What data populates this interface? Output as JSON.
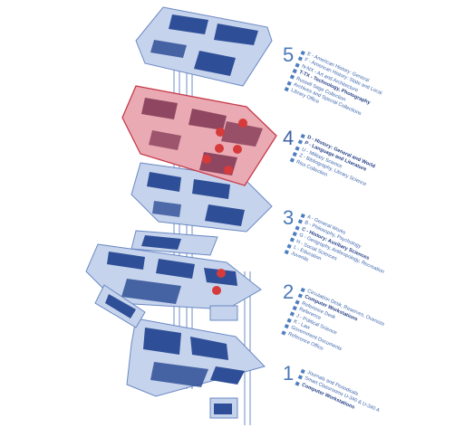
{
  "colors": {
    "floor_fill": "#c6d3ec",
    "floor_stroke": "#6a89c4",
    "room_fill": "#2e4f97",
    "highlight_fill": "#e9aab3",
    "highlight_stroke": "#c73a4b",
    "marker": "#d63a3a",
    "legend_text": "#3c66ac",
    "legend_bold": "#243f86"
  },
  "floors": [
    {
      "number": "5",
      "items": [
        {
          "text": "E - American History: General",
          "bold": false
        },
        {
          "text": "F - American History: State and Local",
          "bold": false
        },
        {
          "text": "N-NX - Art and Architecture",
          "bold": false
        },
        {
          "text": "T-TX - Technology, Photography",
          "bold": true
        },
        {
          "text": "Russell Sage Collection",
          "bold": false
        },
        {
          "text": "Archives and Special Collections",
          "bold": false
        },
        {
          "text": "Library Office",
          "bold": false
        }
      ]
    },
    {
      "number": "4",
      "active": true,
      "items": [
        {
          "text": "D - History: General and World",
          "bold": true
        },
        {
          "text": "P - Language and Literature",
          "bold": true
        },
        {
          "text": "U - Military Science",
          "bold": false
        },
        {
          "text": "Z - Bibliography, Library Science",
          "bold": false
        },
        {
          "text": "Riss Collection",
          "bold": false
        }
      ]
    },
    {
      "number": "3",
      "items": [
        {
          "text": "A - General Works",
          "bold": false
        },
        {
          "text": "B - Philosophy, Psychology",
          "bold": false
        },
        {
          "text": "C - History: Auxiliary Sciences",
          "bold": true
        },
        {
          "text": "G - Geography, Anthropology, Recreation",
          "bold": false
        },
        {
          "text": "H - Social Sciences",
          "bold": false
        },
        {
          "text": "L - Education",
          "bold": false
        },
        {
          "text": "Juvenile",
          "bold": false
        }
      ]
    },
    {
      "number": "2",
      "items": [
        {
          "text": "Circulation Desk, Reserves, Oversize",
          "bold": false
        },
        {
          "text": "Computer Workstations",
          "bold": true
        },
        {
          "text": "Reference Desk",
          "bold": false
        },
        {
          "text": "Reference",
          "bold": false
        },
        {
          "text": "J - Political Science",
          "bold": false
        },
        {
          "text": "K - Law",
          "bold": false
        },
        {
          "text": "Government Documents",
          "bold": false
        },
        {
          "text": "Reference Office",
          "bold": false
        }
      ]
    },
    {
      "number": "1",
      "items": [
        {
          "text": "Journals and Periodicals",
          "bold": false
        },
        {
          "text": "Smart Classrooms U-340 & U-340 A",
          "bold": false
        },
        {
          "text": "Computer Workstations",
          "bold": true
        }
      ]
    }
  ]
}
